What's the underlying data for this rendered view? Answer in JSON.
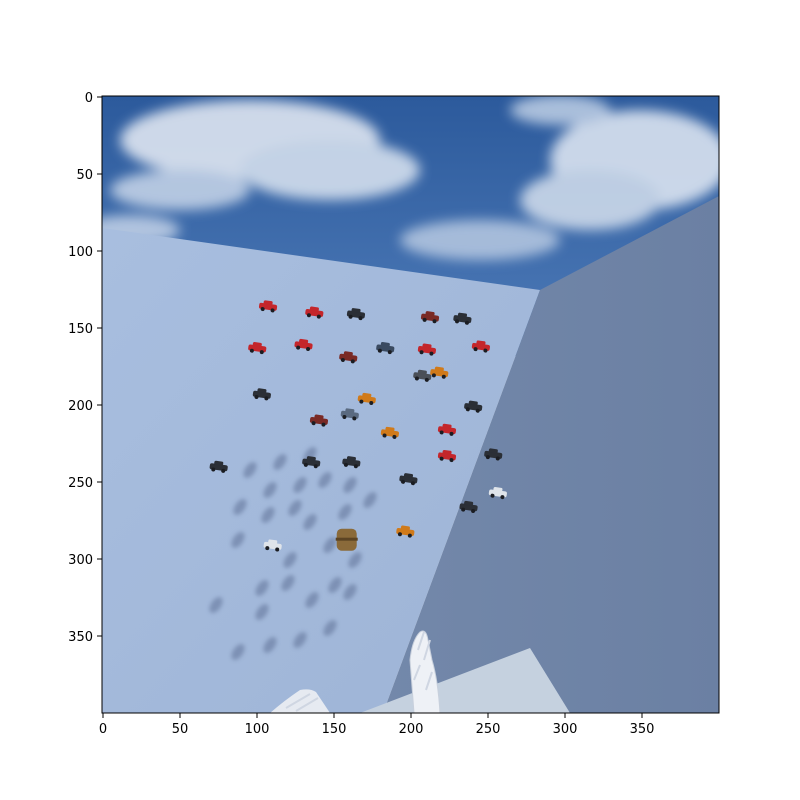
{
  "axes": {
    "x_ticks": [
      "0",
      "50",
      "100",
      "150",
      "200",
      "250",
      "300",
      "350"
    ],
    "y_ticks": [
      "0",
      "50",
      "100",
      "150",
      "200",
      "250",
      "300",
      "350"
    ]
  },
  "scene": {
    "objects": [
      {
        "type": "car",
        "color": "#c4262b",
        "x": 107,
        "y": 136
      },
      {
        "type": "car",
        "color": "#c4262b",
        "x": 137,
        "y": 140
      },
      {
        "type": "car",
        "color": "#2b2f36",
        "x": 164,
        "y": 141
      },
      {
        "type": "car",
        "color": "#7a2a25",
        "x": 212,
        "y": 143
      },
      {
        "type": "car",
        "color": "#2b2f36",
        "x": 233,
        "y": 144
      },
      {
        "type": "car",
        "color": "#c4262b",
        "x": 100,
        "y": 163
      },
      {
        "type": "car",
        "color": "#c4262b",
        "x": 130,
        "y": 161
      },
      {
        "type": "car",
        "color": "#7a2a25",
        "x": 159,
        "y": 169
      },
      {
        "type": "car",
        "color": "#3a4a60",
        "x": 183,
        "y": 163
      },
      {
        "type": "car",
        "color": "#c4262b",
        "x": 210,
        "y": 164
      },
      {
        "type": "car",
        "color": "#c4262b",
        "x": 245,
        "y": 162
      },
      {
        "type": "car",
        "color": "#4a4f57",
        "x": 207,
        "y": 181
      },
      {
        "type": "car",
        "color": "#d07a1a",
        "x": 218,
        "y": 179
      },
      {
        "type": "car",
        "color": "#2b2f36",
        "x": 103,
        "y": 193
      },
      {
        "type": "car",
        "color": "#d07a1a",
        "x": 171,
        "y": 196
      },
      {
        "type": "car",
        "color": "#2b2f36",
        "x": 240,
        "y": 201
      },
      {
        "type": "car",
        "color": "#5a6a80",
        "x": 160,
        "y": 206
      },
      {
        "type": "car",
        "color": "#7a2a25",
        "x": 140,
        "y": 210
      },
      {
        "type": "car",
        "color": "#c4262b",
        "x": 223,
        "y": 216
      },
      {
        "type": "car",
        "color": "#d07a1a",
        "x": 186,
        "y": 218
      },
      {
        "type": "car",
        "color": "#c4262b",
        "x": 223,
        "y": 233
      },
      {
        "type": "car",
        "color": "#2b2f36",
        "x": 253,
        "y": 232
      },
      {
        "type": "car",
        "color": "#2b2f36",
        "x": 161,
        "y": 237
      },
      {
        "type": "car",
        "color": "#2b2f36",
        "x": 135,
        "y": 237
      },
      {
        "type": "car",
        "color": "#2b2f36",
        "x": 75,
        "y": 240
      },
      {
        "type": "car",
        "color": "#2b2f36",
        "x": 198,
        "y": 248
      },
      {
        "type": "car",
        "color": "#dfe4ea",
        "x": 256,
        "y": 257
      },
      {
        "type": "car",
        "color": "#2b2f36",
        "x": 237,
        "y": 266
      },
      {
        "type": "car",
        "color": "#d07a1a",
        "x": 196,
        "y": 282
      },
      {
        "type": "car",
        "color": "#dfe4ea",
        "x": 110,
        "y": 291
      },
      {
        "type": "barrel",
        "color": "#8a6a3a",
        "x": 158,
        "y": 287
      }
    ]
  }
}
